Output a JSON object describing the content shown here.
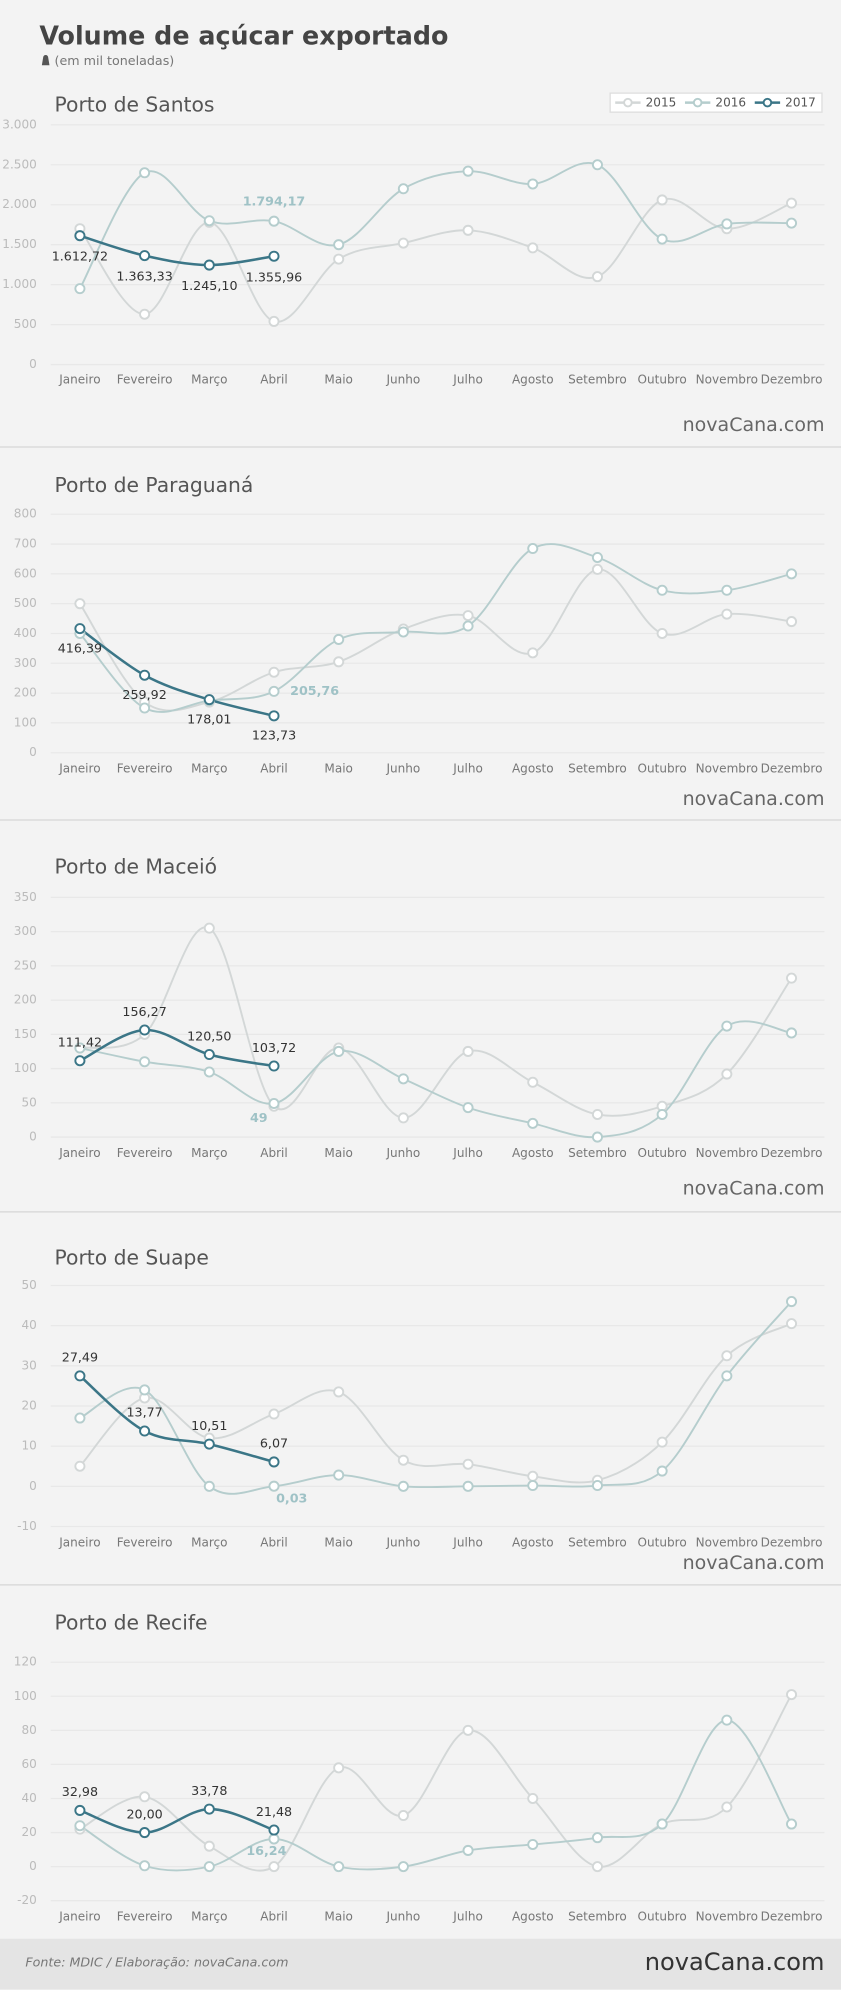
{
  "header": {
    "title": "Volume de açúcar exportado",
    "subtitle": "(em mil toneladas)"
  },
  "logo": "novaCana.com",
  "footer": {
    "source": "Fonte: MDIC / Elaboração: novaCana.com"
  },
  "chart_data": [
    {
      "type": "line",
      "title": "Porto de Santos",
      "categories": [
        "Janeiro",
        "Fevereiro",
        "Março",
        "Abril",
        "Maio",
        "Junho",
        "Julho",
        "Agosto",
        "Setembro",
        "Outubro",
        "Novembro",
        "Dezembro"
      ],
      "ylim": [
        0,
        3000
      ],
      "yticks": [
        0,
        500,
        {
          "value": 1000,
          "label": "1.000"
        },
        {
          "value": 1500,
          "label": "1.500"
        },
        {
          "value": 2000,
          "label": "2.000"
        },
        {
          "value": 2500,
          "label": "2.500"
        },
        {
          "value": 3000,
          "label": "3.000"
        }
      ],
      "grid": true,
      "legend": "upper right",
      "series": [
        {
          "name": "2015",
          "color": "#d3d7d7",
          "values": [
            1700,
            630,
            1780,
            540,
            1320,
            1520,
            1680,
            1460,
            1100,
            2060,
            1700,
            2020
          ]
        },
        {
          "name": "2016",
          "color": "#b5cdcd",
          "values": [
            950,
            2400,
            1800,
            1794.17,
            1500,
            2200,
            2420,
            2260,
            2500,
            1570,
            1760,
            1770
          ],
          "value_labels": [
            null,
            null,
            null,
            "1.794,17",
            null,
            null,
            null,
            null,
            null,
            null,
            null,
            null
          ]
        },
        {
          "name": "2017",
          "color": "#3b7687",
          "values": [
            1612.72,
            1363.33,
            1245.1,
            1355.96,
            null,
            null,
            null,
            null,
            null,
            null,
            null,
            null
          ],
          "value_labels": [
            "1.612,72",
            "1.363,33",
            "1.245,10",
            "1.355,96",
            null,
            null,
            null,
            null,
            null,
            null,
            null,
            null
          ]
        }
      ]
    },
    {
      "type": "line",
      "title": "Porto de Paraguaná",
      "categories": [
        "Janeiro",
        "Fevereiro",
        "Março",
        "Abril",
        "Maio",
        "Junho",
        "Julho",
        "Agosto",
        "Setembro",
        "Outubro",
        "Novembro",
        "Dezembro"
      ],
      "ylim": [
        0,
        800
      ],
      "yticks": [
        0,
        100,
        200,
        300,
        400,
        500,
        600,
        700,
        800
      ],
      "grid": true,
      "series": [
        {
          "color": "#d3d7d7",
          "values": [
            500,
            170,
            170,
            270,
            305,
            415,
            460,
            335,
            615,
            400,
            465,
            440
          ]
        },
        {
          "color": "#b5cdcd",
          "values": [
            400,
            150,
            175,
            205.76,
            380,
            405,
            425,
            685,
            655,
            545,
            545,
            600
          ],
          "value_labels": [
            null,
            null,
            null,
            "205,76",
            null,
            null,
            null,
            null,
            null,
            null,
            null,
            null
          ]
        },
        {
          "color": "#3b7687",
          "values": [
            416.39,
            259.92,
            178.01,
            123.73,
            null,
            null,
            null,
            null,
            null,
            null,
            null,
            null
          ],
          "value_labels": [
            "416,39",
            "259,92",
            "178,01",
            "123,73",
            null,
            null,
            null,
            null,
            null,
            null,
            null,
            null
          ]
        }
      ]
    },
    {
      "type": "line",
      "title": "Porto de Maceió",
      "categories": [
        "Janeiro",
        "Fevereiro",
        "Março",
        "Abril",
        "Maio",
        "Junho",
        "Julho",
        "Agosto",
        "Setembro",
        "Outubro",
        "Novembro",
        "Dezembro"
      ],
      "ylim": [
        0,
        350
      ],
      "yticks": [
        0,
        50,
        100,
        150,
        200,
        250,
        300,
        350
      ],
      "grid": true,
      "series": [
        {
          "color": "#d3d7d7",
          "values": [
            130,
            150,
            305,
            45,
            130,
            28,
            125,
            80,
            33,
            45,
            92,
            232
          ]
        },
        {
          "color": "#b5cdcd",
          "values": [
            130,
            110,
            95,
            49,
            125,
            85,
            43,
            20,
            0,
            33,
            162,
            152
          ],
          "value_labels": [
            null,
            null,
            null,
            "49",
            null,
            null,
            null,
            null,
            null,
            null,
            null,
            null
          ]
        },
        {
          "color": "#3b7687",
          "values": [
            111.42,
            156.27,
            120.5,
            103.72,
            null,
            null,
            null,
            null,
            null,
            null,
            null,
            null
          ],
          "value_labels": [
            "111,42",
            "156,27",
            "120,50",
            "103,72",
            null,
            null,
            null,
            null,
            null,
            null,
            null,
            null
          ]
        }
      ]
    },
    {
      "type": "line",
      "title": "Porto de Suape",
      "categories": [
        "Janeiro",
        "Fevereiro",
        "Março",
        "Abril",
        "Maio",
        "Junho",
        "Julho",
        "Agosto",
        "Setembro",
        "Outubro",
        "Novembro",
        "Dezembro"
      ],
      "ylim": [
        -10,
        50
      ],
      "yticks": [
        -10,
        0,
        10,
        20,
        30,
        40,
        50
      ],
      "grid": true,
      "series": [
        {
          "color": "#d3d7d7",
          "values": [
            5,
            22,
            12,
            18,
            23.5,
            6.5,
            5.5,
            2.5,
            1.5,
            11,
            32.5,
            40.5
          ]
        },
        {
          "color": "#b5cdcd",
          "values": [
            17,
            24,
            0,
            0.03,
            2.8,
            0,
            0,
            0.2,
            0.2,
            3.8,
            27.5,
            46
          ],
          "value_labels": [
            null,
            null,
            null,
            "0,03",
            null,
            null,
            null,
            null,
            null,
            null,
            null,
            null
          ]
        },
        {
          "color": "#3b7687",
          "values": [
            27.49,
            13.77,
            10.51,
            6.07,
            null,
            null,
            null,
            null,
            null,
            null,
            null,
            null
          ],
          "value_labels": [
            "27,49",
            "13,77",
            "10,51",
            "6,07",
            null,
            null,
            null,
            null,
            null,
            null,
            null,
            null
          ]
        }
      ]
    },
    {
      "type": "line",
      "title": "Porto de Recife",
      "categories": [
        "Janeiro",
        "Fevereiro",
        "Março",
        "Abril",
        "Maio",
        "Junho",
        "Julho",
        "Agosto",
        "Setembro",
        "Outubro",
        "Novembro",
        "Dezembro"
      ],
      "ylim": [
        -20,
        120
      ],
      "yticks": [
        -20,
        0,
        20,
        40,
        60,
        80,
        100,
        120
      ],
      "grid": true,
      "series": [
        {
          "color": "#d3d7d7",
          "values": [
            22,
            41,
            12,
            0,
            58,
            30,
            80,
            40,
            0,
            25,
            35,
            101
          ]
        },
        {
          "color": "#b5cdcd",
          "values": [
            24,
            0.5,
            0,
            16.24,
            0,
            0,
            9.5,
            13,
            17,
            25,
            86,
            25
          ],
          "value_labels": [
            null,
            null,
            null,
            "16,24",
            null,
            null,
            null,
            null,
            null,
            null,
            null,
            null
          ]
        },
        {
          "color": "#3b7687",
          "values": [
            32.98,
            20.0,
            33.78,
            21.48,
            null,
            null,
            null,
            null,
            null,
            null,
            null,
            null
          ],
          "value_labels": [
            "32,98",
            "20,00",
            "33,78",
            "21,48",
            null,
            null,
            null,
            null,
            null,
            null,
            null,
            null
          ]
        }
      ]
    }
  ]
}
